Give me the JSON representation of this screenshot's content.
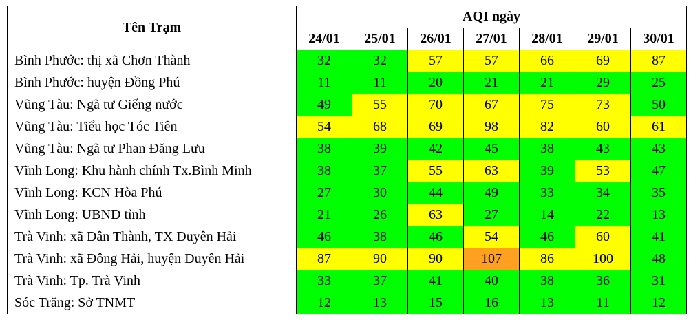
{
  "page": {
    "background": "#ffffff",
    "text_color": "#000000",
    "border_color": "#000000"
  },
  "chart_data": {
    "type": "table",
    "title": "AQI ngày",
    "row_header_label": "Tên Trạm",
    "columns": [
      "24/01",
      "25/01",
      "26/01",
      "27/01",
      "28/01",
      "29/01",
      "30/01"
    ],
    "rows": [
      {
        "station": "Bình Phước: thị xã Chơn Thành",
        "values": [
          32,
          32,
          57,
          57,
          66,
          69,
          87
        ]
      },
      {
        "station": "Bình Phước: huyện Đồng Phú",
        "values": [
          11,
          11,
          20,
          21,
          21,
          29,
          25
        ]
      },
      {
        "station": "Vũng Tàu: Ngã tư Giếng nước",
        "values": [
          49,
          55,
          70,
          67,
          75,
          73,
          50
        ]
      },
      {
        "station": "Vũng Tàu: Tiểu học Tóc Tiên",
        "values": [
          54,
          68,
          69,
          98,
          82,
          60,
          61
        ]
      },
      {
        "station": "Vũng Tàu: Ngã tư Phan Đăng Lưu",
        "values": [
          38,
          39,
          42,
          45,
          38,
          43,
          43
        ]
      },
      {
        "station": "Vĩnh Long: Khu hành chính Tx.Bình Minh",
        "values": [
          38,
          37,
          55,
          63,
          39,
          53,
          47
        ]
      },
      {
        "station": "Vĩnh Long: KCN Hòa Phú",
        "values": [
          27,
          30,
          44,
          49,
          33,
          34,
          35
        ]
      },
      {
        "station": "Vĩnh Long: UBND tỉnh",
        "values": [
          21,
          26,
          63,
          27,
          14,
          22,
          13
        ]
      },
      {
        "station": "Trà Vinh: xã Dân Thành, TX Duyên Hải",
        "values": [
          46,
          38,
          46,
          54,
          46,
          60,
          41
        ]
      },
      {
        "station": "Trà Vinh: xã Đông Hải, huyện Duyên Hải",
        "values": [
          87,
          90,
          90,
          107,
          86,
          100,
          48
        ]
      },
      {
        "station": "Trà Vinh: Tp. Trà Vinh",
        "values": [
          33,
          37,
          41,
          40,
          38,
          36,
          31
        ]
      },
      {
        "station": "Sóc Trăng: Sở TNMT",
        "values": [
          12,
          13,
          15,
          16,
          13,
          11,
          12
        ]
      }
    ],
    "color_scale": [
      {
        "label": "good",
        "max": 50,
        "color": "#00ff00"
      },
      {
        "label": "moderate",
        "max": 100,
        "color": "#ffff00"
      },
      {
        "label": "unhealthy-for-sensitive",
        "max": 500,
        "color": "#ffa020"
      }
    ],
    "layout": {
      "grid": true,
      "legend": "none"
    }
  }
}
